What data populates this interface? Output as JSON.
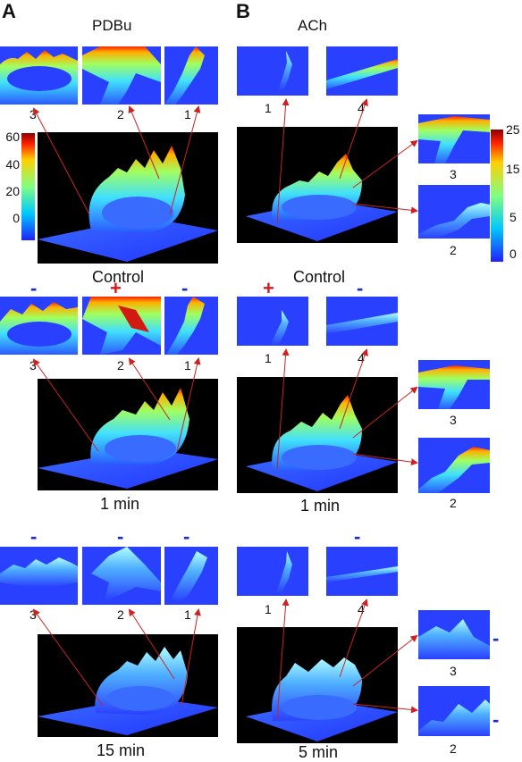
{
  "panels": {
    "A": {
      "letter": "A",
      "drug": "PDBu",
      "colorbar_ticks": [
        "60",
        "40",
        "20",
        "0"
      ],
      "rows": [
        {
          "condition": "Control",
          "thumb_labels": [
            "3",
            "2",
            "1"
          ],
          "signs": [
            "",
            "",
            ""
          ]
        },
        {
          "condition": "1 min",
          "thumb_labels": [
            "3",
            "2",
            "1"
          ],
          "signs": [
            "-",
            "+",
            "-"
          ]
        },
        {
          "condition": "15 min",
          "thumb_labels": [
            "3",
            "2",
            "1"
          ],
          "signs": [
            "-",
            "-",
            "-"
          ]
        }
      ]
    },
    "B": {
      "letter": "B",
      "drug": "ACh",
      "colorbar_ticks": [
        "25",
        "15",
        "5",
        "0"
      ],
      "rows": [
        {
          "condition": "Control",
          "thumb_labels": [
            "1",
            "4",
            "3",
            "2"
          ],
          "signs": [
            "",
            "",
            "",
            ""
          ]
        },
        {
          "condition": "1 min",
          "thumb_labels": [
            "1",
            "4",
            "3",
            "2"
          ],
          "signs": [
            "+",
            "-",
            "",
            ""
          ]
        },
        {
          "condition": "5 min",
          "thumb_labels": [
            "1",
            "4",
            "3",
            "2"
          ],
          "signs": [
            "",
            "-",
            "-",
            "-"
          ]
        }
      ]
    }
  },
  "colors": {
    "background_plane": "#2236ff",
    "arrow": "#cc2222",
    "minus_sign": "#1a2ecc",
    "plus_sign": "#d41a1a"
  }
}
